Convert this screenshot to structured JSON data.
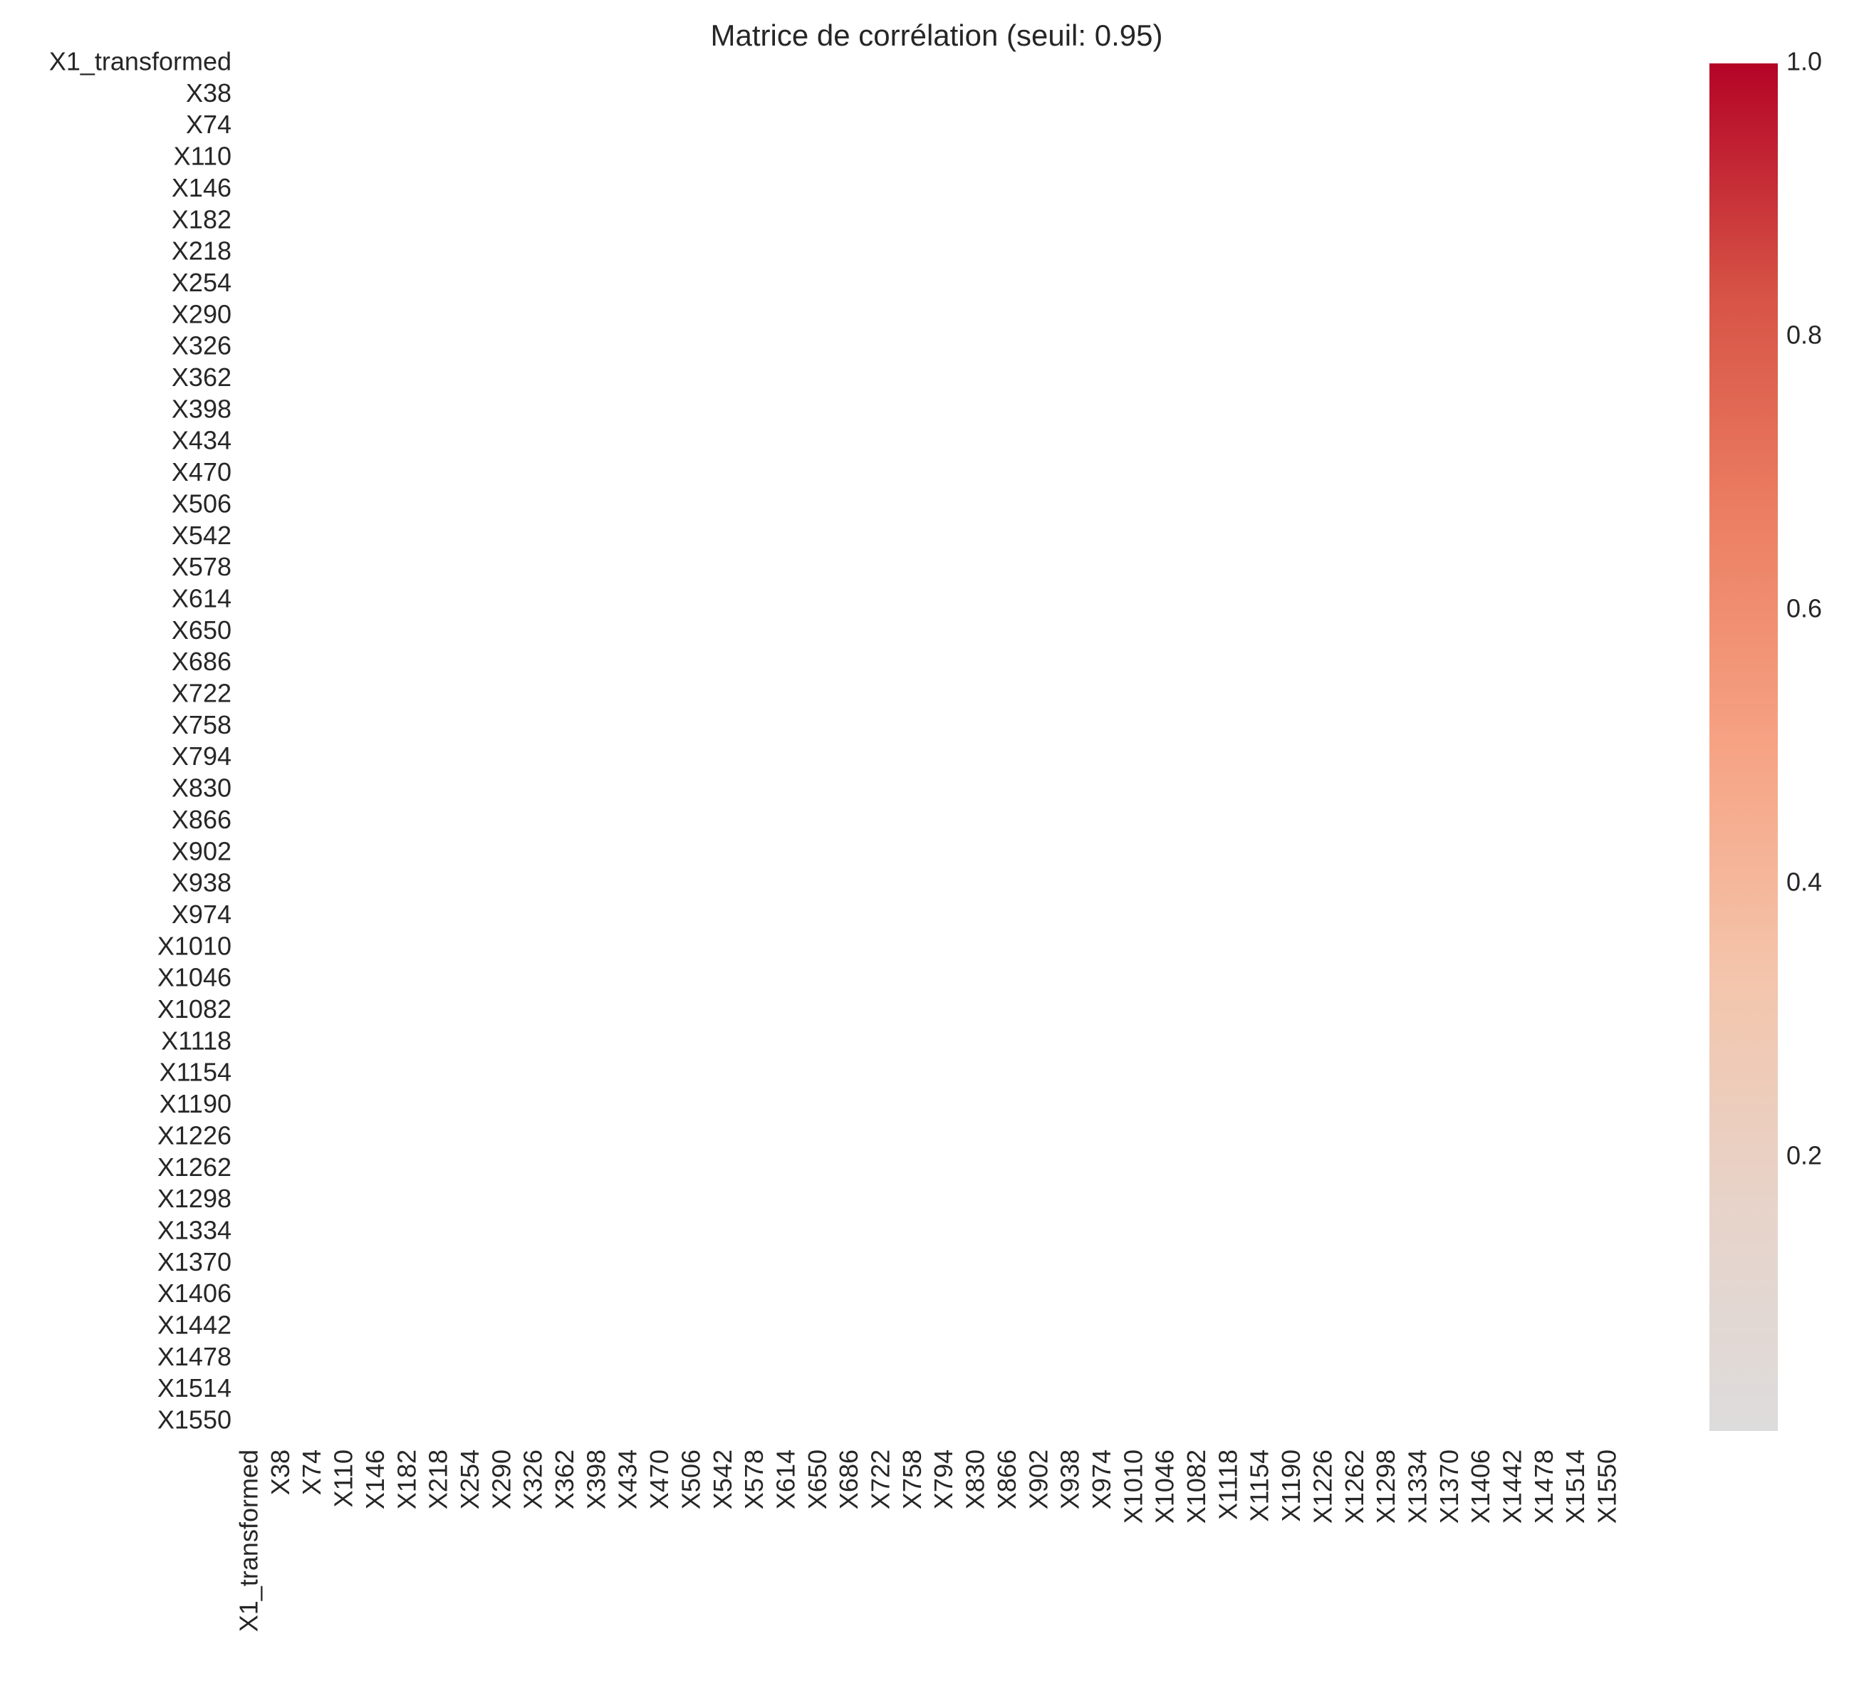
{
  "chart_data": {
    "type": "heatmap",
    "title": "Matrice de corrélation (seuil: 0.95)",
    "xlabel": "",
    "ylabel": "",
    "labels": [
      "X1_transformed",
      "X38",
      "X74",
      "X110",
      "X146",
      "X182",
      "X218",
      "X254",
      "X290",
      "X326",
      "X362",
      "X398",
      "X434",
      "X470",
      "X506",
      "X542",
      "X578",
      "X614",
      "X650",
      "X686",
      "X722",
      "X758",
      "X794",
      "X830",
      "X866",
      "X902",
      "X938",
      "X974",
      "X1010",
      "X1046",
      "X1082",
      "X1118",
      "X1154",
      "X1190",
      "X1226",
      "X1262",
      "X1298",
      "X1334",
      "X1370",
      "X1406",
      "X1442",
      "X1478",
      "X1514",
      "X1550"
    ],
    "threshold": 0.95,
    "cells": "none shown — all cells masked (no correlation above threshold)",
    "colorbar": {
      "colormap": "coolwarm-upper",
      "range": [
        0.0,
        1.0
      ],
      "ticks": [
        "0.2",
        "0.4",
        "0.6",
        "0.8",
        "1.0"
      ],
      "stops": [
        "#dddcdc",
        "#e7d3c9",
        "#f4c5ab",
        "#f6a384",
        "#ec7f63",
        "#d65245",
        "#b40426"
      ]
    },
    "grid": false
  }
}
